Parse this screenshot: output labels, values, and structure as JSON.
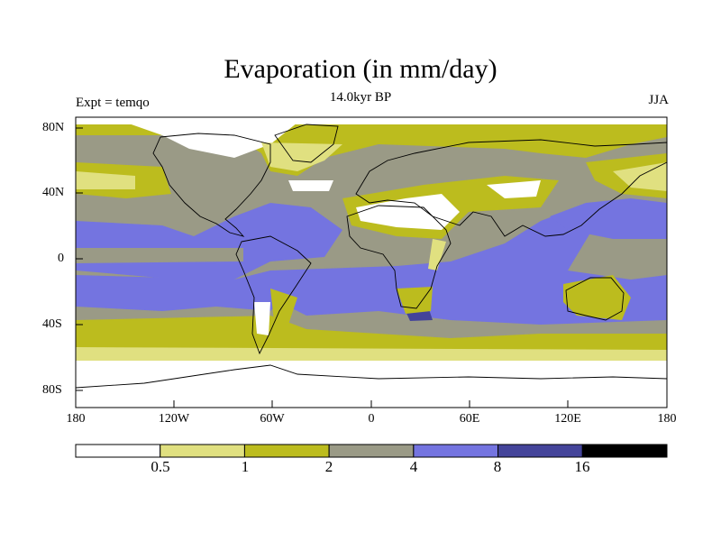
{
  "title": "Evaporation (in mm/day)",
  "subtitle": "14.0kyr BP",
  "left_label": "Expt = temqo",
  "right_label": "JJA",
  "lat_labels": [
    "80N",
    "40N",
    "0",
    "40S",
    "80S"
  ],
  "lon_labels": [
    "180",
    "120W",
    "60W",
    "0",
    "60E",
    "120E",
    "180"
  ],
  "colorbar": {
    "levels": [
      "0.5",
      "1",
      "2",
      "4",
      "8",
      "16"
    ],
    "colors": [
      "#ffffff",
      "#e0e080",
      "#bcbc1e",
      "#9a9a86",
      "#7474e0",
      "#44449a",
      "#000000"
    ]
  }
}
